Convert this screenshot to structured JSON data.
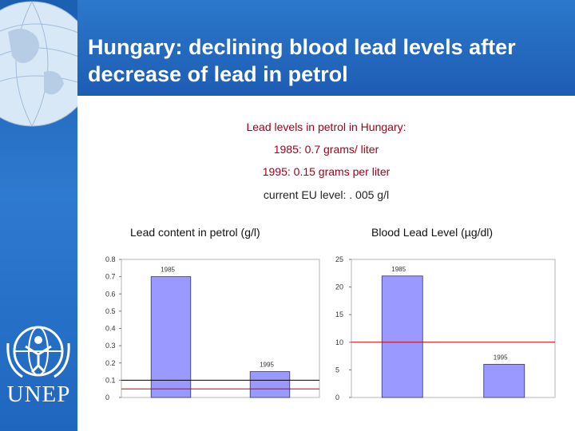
{
  "title": "Hungary: declining blood lead levels after decrease of lead in petrol",
  "info_lines": [
    "Lead levels in petrol in Hungary:",
    "1985: 0.7 grams/ liter",
    "1995: 0.15 grams per liter",
    "current EU level: . 005 g/l"
  ],
  "logo_text": "UNEP",
  "colors": {
    "bar": "#9999ff",
    "bar_edge": "#333366",
    "ref_line_red": "#cc0000",
    "ref_line_black": "#000000"
  },
  "chart_data": [
    {
      "type": "bar",
      "title": "Lead content in petrol (g/l)",
      "categories": [
        "1985",
        "1995"
      ],
      "values": [
        0.7,
        0.15
      ],
      "ylim": [
        0,
        0.8
      ],
      "yticks": [
        "0",
        "0.1",
        "0.2",
        "0.3",
        "0.4",
        "0.5",
        "0.6",
        "0.7",
        "0.8"
      ],
      "reference_lines": [
        {
          "value": 0.1,
          "color": "#000000"
        },
        {
          "value": 0.05,
          "color": "#cc0000"
        }
      ],
      "grid": false
    },
    {
      "type": "bar",
      "title": "Blood Lead Level (µg/dl)",
      "categories": [
        "1985",
        "1995"
      ],
      "values": [
        22,
        6
      ],
      "ylim": [
        0,
        25
      ],
      "yticks": [
        "0",
        "5",
        "10",
        "15",
        "20",
        "25"
      ],
      "reference_lines": [
        {
          "value": 10,
          "color": "#cc0000"
        }
      ],
      "grid": false
    }
  ]
}
